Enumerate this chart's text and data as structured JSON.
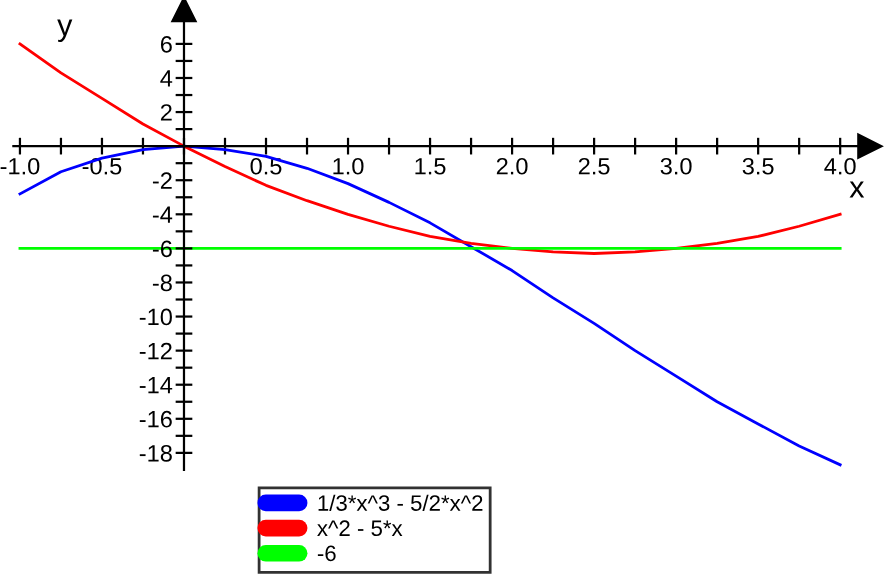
{
  "chart_data": {
    "type": "line",
    "xlabel": "x",
    "ylabel": "y",
    "x": [
      -1,
      -0.75,
      -0.5,
      -0.25,
      0,
      0.25,
      0.5,
      0.75,
      1,
      1.25,
      1.5,
      1.75,
      2,
      2.25,
      2.5,
      2.75,
      3,
      3.25,
      3.5,
      3.75,
      4
    ],
    "series": [
      {
        "name": "1/3*x^3 - 5/2*x^2",
        "color": "#0000ff",
        "values": [
          -2.8,
          -1.5,
          -0.7,
          -0.2,
          0,
          -0.2,
          -0.6,
          -1.3,
          -2.2,
          -3.3,
          -4.5,
          -5.9,
          -7.3,
          -8.9,
          -10.4,
          -12.0,
          -13.5,
          -15.0,
          -16.3,
          -17.6,
          -18.7
        ]
      },
      {
        "name": "x^2 - 5*x",
        "color": "#ff0000",
        "values": [
          6,
          4.3,
          2.8,
          1.3,
          0,
          -1.2,
          -2.3,
          -3.2,
          -4,
          -4.7,
          -5.3,
          -5.7,
          -6,
          -6.2,
          -6.3,
          -6.2,
          -6,
          -5.7,
          -5.3,
          -4.7,
          -4
        ]
      },
      {
        "name": "-6",
        "color": "#00ff00",
        "x": [
          -1,
          4
        ],
        "values": [
          -6,
          -6
        ]
      }
    ],
    "xlim": [
      -1.04,
      4.18
    ],
    "ylim": [
      -19,
      8
    ],
    "xticks": [
      {
        "value": -1,
        "label": "-1.0"
      },
      {
        "value": -0.75,
        "label": null
      },
      {
        "value": -0.5,
        "label": "-0.5"
      },
      {
        "value": -0.25,
        "label": null
      },
      {
        "value": 0,
        "label": null
      },
      {
        "value": 0.25,
        "label": null
      },
      {
        "value": 0.5,
        "label": "0.5"
      },
      {
        "value": 0.75,
        "label": null
      },
      {
        "value": 1,
        "label": "1.0"
      },
      {
        "value": 1.25,
        "label": null
      },
      {
        "value": 1.5,
        "label": "1.5"
      },
      {
        "value": 1.75,
        "label": null
      },
      {
        "value": 2,
        "label": "2.0"
      },
      {
        "value": 2.25,
        "label": null
      },
      {
        "value": 2.5,
        "label": "2.5"
      },
      {
        "value": 2.75,
        "label": null
      },
      {
        "value": 3,
        "label": "3.0"
      },
      {
        "value": 3.25,
        "label": null
      },
      {
        "value": 3.5,
        "label": "3.5"
      },
      {
        "value": 3.75,
        "label": null
      },
      {
        "value": 4,
        "label": "4.0"
      }
    ],
    "yticks": [
      -18,
      {
        "value": -17,
        "label": null
      },
      -16,
      {
        "value": -15,
        "label": null
      },
      -14,
      {
        "value": -13,
        "label": null
      },
      -12,
      {
        "value": -11,
        "label": null
      },
      -10,
      {
        "value": -9,
        "label": null
      },
      -8,
      {
        "value": -7,
        "label": null
      },
      -6,
      {
        "value": -5,
        "label": null
      },
      -4,
      {
        "value": -3,
        "label": null
      },
      -2,
      {
        "value": -1,
        "label": null
      },
      {
        "value": 0,
        "label": null
      },
      {
        "value": 1,
        "label": null
      },
      2,
      {
        "value": 3,
        "label": null
      },
      4,
      {
        "value": 5,
        "label": null
      },
      6
    ],
    "grid": false,
    "legend": "bottom",
    "marker": "none",
    "line_style": "solid"
  }
}
